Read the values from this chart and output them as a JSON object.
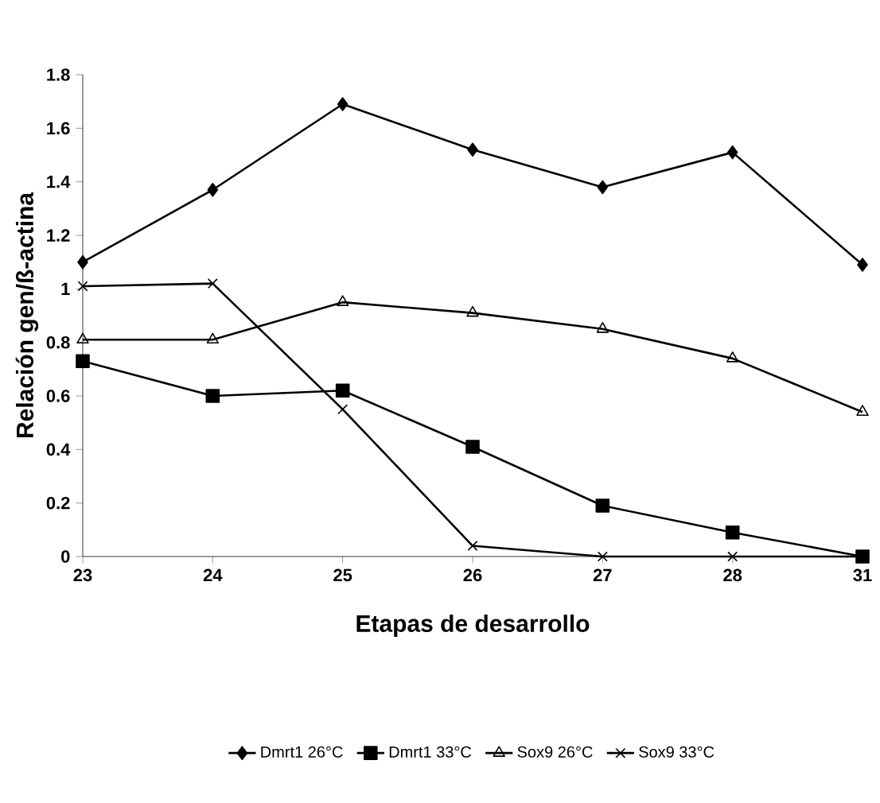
{
  "chart_data": {
    "type": "line",
    "xlabel": "Etapas de desarrollo",
    "ylabel": "Relación gen/ß-actina",
    "categories": [
      "23",
      "24",
      "25",
      "26",
      "27",
      "28",
      "31"
    ],
    "series": [
      {
        "name": "Dmrt1 26°C",
        "color": "#000000",
        "marker": "diamond",
        "values": [
          1.1,
          1.37,
          1.69,
          1.52,
          1.38,
          1.51,
          1.09
        ]
      },
      {
        "name": "Dmrt1 33°C",
        "color": "#000000",
        "marker": "square",
        "values": [
          0.73,
          0.6,
          0.62,
          0.41,
          0.19,
          0.09,
          0
        ]
      },
      {
        "name": "Sox9 26°C",
        "color": "#000000",
        "marker": "triangle",
        "values": [
          0.81,
          0.81,
          0.95,
          0.91,
          0.85,
          0.74,
          0.54
        ]
      },
      {
        "name": "Sox9 33°C",
        "color": "#000000",
        "marker": "cross",
        "values": [
          1.01,
          1.02,
          0.55,
          0.04,
          0,
          0,
          0
        ]
      }
    ],
    "ylim": [
      0,
      1.8
    ],
    "yticks": [
      0,
      0.2,
      0.4,
      0.6,
      0.8,
      1,
      1.2,
      1.4,
      1.6,
      1.8
    ],
    "grid": false,
    "legend": "bottom",
    "line_style": "solid"
  }
}
